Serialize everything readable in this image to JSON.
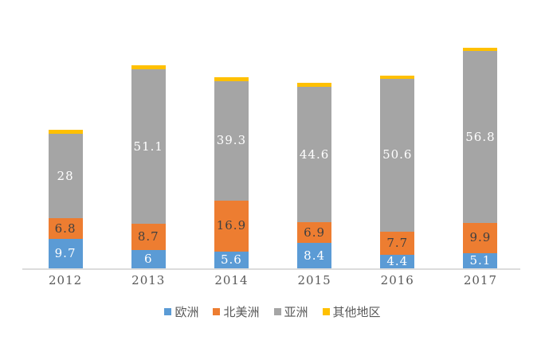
{
  "chart_data": {
    "type": "bar",
    "stacked": true,
    "title": "",
    "categories": [
      "2012",
      "2013",
      "2014",
      "2015",
      "2016",
      "2017"
    ],
    "series": [
      {
        "name": "欧洲",
        "key": "europe",
        "color": "#5B9BD5",
        "label_color": "#FFFFFF",
        "values": [
          9.7,
          6,
          5.6,
          8.4,
          4.4,
          5.1
        ],
        "labels": [
          "9.7",
          "6",
          "5.6",
          "8.4",
          "4.4",
          "5.1"
        ],
        "data_labels_shown": true
      },
      {
        "name": "北美洲",
        "key": "north-america",
        "color": "#ED7D31",
        "label_color": "#404040",
        "values": [
          6.8,
          8.7,
          16.9,
          6.9,
          7.7,
          9.9
        ],
        "labels": [
          "6.8",
          "8.7",
          "16.9",
          "6.9",
          "7.7",
          "9.9"
        ],
        "data_labels_shown": true
      },
      {
        "name": "亚洲",
        "key": "asia",
        "color": "#A5A5A5",
        "label_color": "#FFFFFF",
        "values": [
          28,
          51.1,
          39.3,
          44.6,
          50.6,
          56.8
        ],
        "labels": [
          "28",
          "51.1",
          "39.3",
          "44.6",
          "50.6",
          "56.8"
        ],
        "data_labels_shown": true
      },
      {
        "name": "其他地区",
        "key": "other-regions",
        "color": "#FFC000",
        "label_color": null,
        "values": [
          1.3,
          1.3,
          1.5,
          1.4,
          1.1,
          1.1
        ],
        "labels": [
          null,
          null,
          null,
          null,
          null,
          null
        ],
        "data_labels_shown": false
      }
    ],
    "legend": {
      "position": "bottom",
      "entries": [
        "欧洲",
        "北美洲",
        "亚洲",
        "其他地区"
      ]
    },
    "axes": {
      "x_labels": [
        "2012",
        "2013",
        "2014",
        "2015",
        "2016",
        "2017"
      ],
      "y_axis_visible": false,
      "gridlines": false,
      "axis_line_color": "#DCDCDC",
      "text_color": "#595959"
    }
  }
}
